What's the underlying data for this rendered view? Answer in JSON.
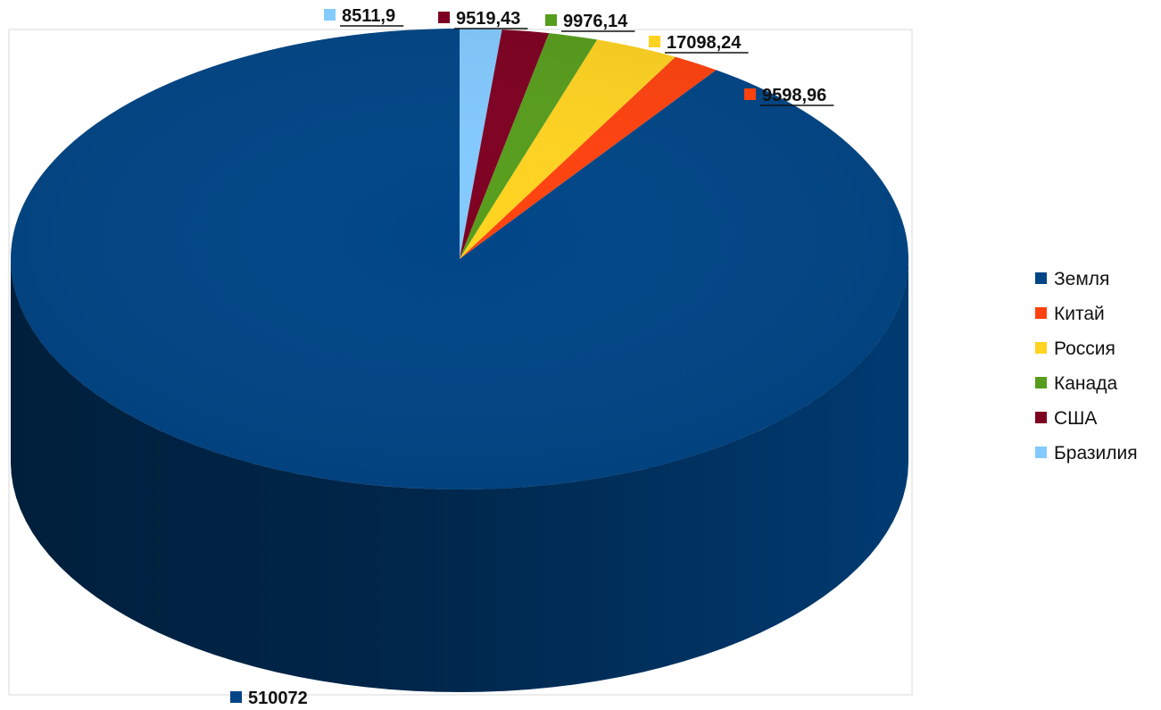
{
  "chart_data": {
    "type": "pie",
    "style": "3d",
    "categories": [
      "Земля",
      "Китай",
      "Россия",
      "Канада",
      "США",
      "Бразилия"
    ],
    "values": [
      510072,
      9598.96,
      17098.24,
      9976.14,
      9519.43,
      8511.9
    ],
    "data_labels": [
      "510072",
      "9598,96",
      "17098,24",
      "9976,14",
      "9519,43",
      "8511,9"
    ],
    "colors": [
      "#004586",
      "#ff420e",
      "#ffd320",
      "#579d1c",
      "#7e0021",
      "#83caff"
    ],
    "legend": [
      "Земля",
      "Китай",
      "Россия",
      "Канада",
      "США",
      "Бразилия"
    ],
    "legend_position": "right",
    "title": "",
    "xlabel": "",
    "ylabel": ""
  }
}
